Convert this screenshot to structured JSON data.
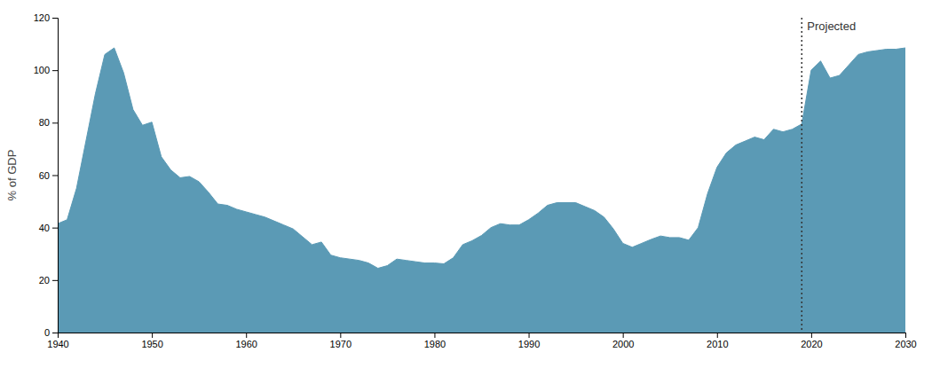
{
  "chart_data": {
    "type": "area",
    "y_label": "% of GDP",
    "color": "#5b9ab5",
    "annotations": [
      {
        "text": "Projected",
        "x": 2019
      }
    ],
    "xlim": [
      1940,
      2030
    ],
    "ylim": [
      0,
      120
    ],
    "yticks": [
      0,
      20,
      40,
      60,
      80,
      100,
      120
    ],
    "xticks": [
      1940,
      1950,
      1960,
      1970,
      1980,
      1990,
      2000,
      2010,
      2020,
      2030
    ],
    "grid": false,
    "x": [
      1940,
      1941,
      1942,
      1943,
      1944,
      1945,
      1946,
      1947,
      1948,
      1949,
      1950,
      1951,
      1952,
      1953,
      1954,
      1955,
      1956,
      1957,
      1958,
      1959,
      1960,
      1961,
      1962,
      1963,
      1964,
      1965,
      1966,
      1967,
      1968,
      1969,
      1970,
      1971,
      1972,
      1973,
      1974,
      1975,
      1976,
      1977,
      1978,
      1979,
      1980,
      1981,
      1982,
      1983,
      1984,
      1985,
      1986,
      1987,
      1988,
      1989,
      1990,
      1991,
      1992,
      1993,
      1994,
      1995,
      1996,
      1997,
      1998,
      1999,
      2000,
      2001,
      2002,
      2003,
      2004,
      2005,
      2006,
      2007,
      2008,
      2009,
      2010,
      2011,
      2012,
      2013,
      2014,
      2015,
      2016,
      2017,
      2018,
      2019,
      2020,
      2021,
      2022,
      2023,
      2024,
      2025,
      2026,
      2027,
      2028,
      2029,
      2030
    ],
    "values": [
      41.5,
      43.0,
      55.0,
      73.0,
      91.0,
      106.0,
      108.5,
      99.0,
      85.0,
      79.0,
      80.2,
      67.0,
      62.0,
      59.0,
      59.5,
      57.5,
      53.5,
      49.0,
      48.5,
      47.0,
      46.0,
      45.0,
      44.0,
      42.5,
      41.0,
      39.5,
      36.5,
      33.5,
      34.5,
      29.5,
      28.5,
      28.0,
      27.5,
      26.5,
      24.5,
      25.5,
      28.0,
      27.5,
      27.0,
      26.5,
      26.5,
      26.2,
      28.5,
      33.5,
      35.0,
      37.0,
      40.0,
      41.5,
      41.0,
      41.0,
      43.0,
      45.5,
      48.5,
      49.5,
      49.5,
      49.5,
      48.0,
      46.5,
      44.0,
      39.5,
      34.0,
      32.5,
      34.0,
      35.5,
      36.8,
      36.2,
      36.2,
      35.2,
      40.0,
      53.0,
      63.0,
      68.5,
      71.5,
      73.0,
      74.5,
      73.5,
      77.5,
      76.5,
      77.5,
      79.5,
      100.0,
      103.5,
      97.0,
      98.0,
      102.0,
      106.0,
      107.0,
      107.5,
      108.0,
      108.0,
      108.5
    ]
  }
}
